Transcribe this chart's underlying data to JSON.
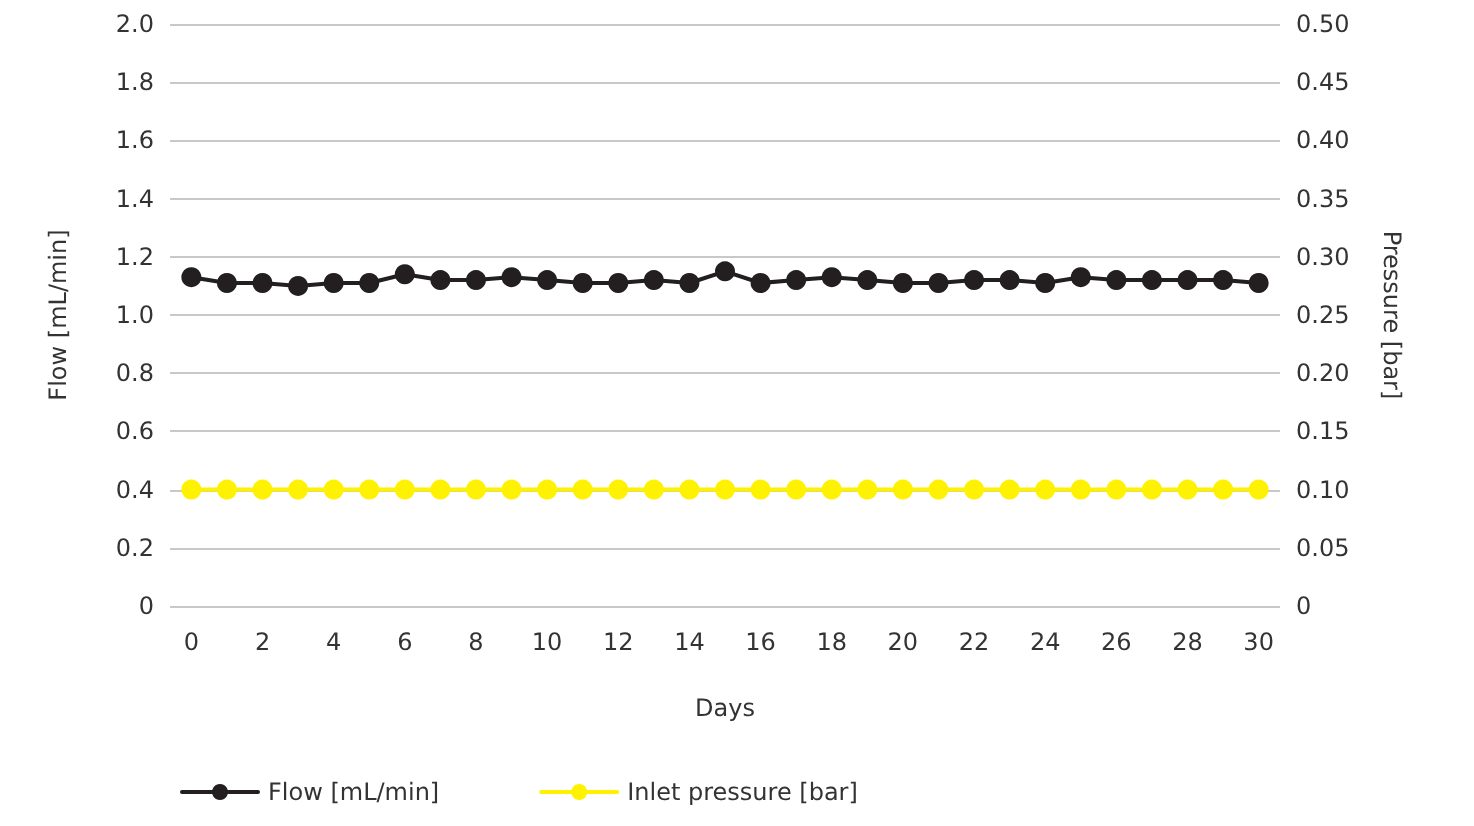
{
  "chart_data": {
    "type": "line",
    "xlabel": "Days",
    "ylabel": "Flow [mL/min]",
    "y2label": "Pressure [bar]",
    "x": [
      0,
      1,
      2,
      3,
      4,
      5,
      6,
      7,
      8,
      9,
      10,
      11,
      12,
      13,
      14,
      15,
      16,
      17,
      18,
      19,
      20,
      21,
      22,
      23,
      24,
      25,
      26,
      27,
      28,
      29,
      30
    ],
    "series": [
      {
        "name": "Flow [mL/min]",
        "color": "#231f20",
        "values": [
          1.13,
          1.11,
          1.11,
          1.1,
          1.11,
          1.11,
          1.14,
          1.12,
          1.12,
          1.13,
          1.12,
          1.11,
          1.11,
          1.12,
          1.11,
          1.15,
          1.11,
          1.12,
          1.13,
          1.12,
          1.11,
          1.11,
          1.12,
          1.12,
          1.11,
          1.13,
          1.12,
          1.12,
          1.12,
          1.12,
          1.11
        ]
      },
      {
        "name": "Inlet pressure [bar]",
        "color": "#fff200",
        "axis": "y2",
        "values": [
          0.1,
          0.1,
          0.1,
          0.1,
          0.1,
          0.1,
          0.1,
          0.1,
          0.1,
          0.1,
          0.1,
          0.1,
          0.1,
          0.1,
          0.1,
          0.1,
          0.1,
          0.1,
          0.1,
          0.1,
          0.1,
          0.1,
          0.1,
          0.1,
          0.1,
          0.1,
          0.1,
          0.1,
          0.1,
          0.1,
          0.1
        ]
      }
    ],
    "xlim": [
      -0.6,
      30.6
    ],
    "xticks": [
      0,
      2,
      4,
      6,
      8,
      10,
      12,
      14,
      16,
      18,
      20,
      22,
      24,
      26,
      28,
      30
    ],
    "ylim": [
      0,
      2
    ],
    "yticks": [
      0,
      0.2,
      0.4,
      0.6,
      0.8,
      {
        "value": 1,
        "label": "1.0"
      },
      1.2,
      1.4,
      1.6,
      1.8,
      {
        "value": 2,
        "label": "2.0"
      }
    ],
    "y2lim": [
      0,
      0.5
    ],
    "y2ticks": [
      0,
      0.05,
      {
        "value": 0.1,
        "label": "0.10"
      },
      0.15,
      {
        "value": 0.2,
        "label": "0.20"
      },
      0.25,
      {
        "value": 0.3,
        "label": "0.30"
      },
      0.35,
      {
        "value": 0.4,
        "label": "0.40"
      },
      0.45,
      {
        "value": 0.5,
        "label": "0.50"
      }
    ],
    "grid": "y",
    "legend": "bottom",
    "marker": "circle",
    "line_style": "solid"
  }
}
